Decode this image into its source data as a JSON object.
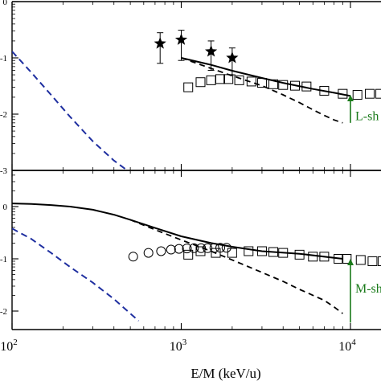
{
  "chart_data": [
    {
      "type": "scatter",
      "panel": "top",
      "x_scale": "log",
      "y_scale": "log",
      "xlim": [
        100,
        20000
      ],
      "ylim": [
        0.001,
        1
      ],
      "y_tick_labels": [
        "0",
        "-1",
        "-2",
        "-3"
      ],
      "series": [
        {
          "style": "stars-with-error-bars",
          "x": [
            750,
            1000,
            1500,
            2000
          ],
          "y": [
            0.18,
            0.21,
            0.13,
            0.1
          ],
          "yerr_low": [
            0.08,
            0.09,
            0.06,
            0.05
          ],
          "yerr_high": [
            0.28,
            0.31,
            0.2,
            0.15
          ]
        },
        {
          "style": "open-squares",
          "x": [
            1100,
            1300,
            1500,
            1700,
            1900,
            2200,
            2600,
            3000,
            3500,
            4000,
            4700,
            5500,
            7000,
            9000,
            11000,
            13000,
            15000,
            17000
          ],
          "y": [
            0.03,
            0.037,
            0.04,
            0.042,
            0.042,
            0.04,
            0.038,
            0.036,
            0.034,
            0.033,
            0.032,
            0.031,
            0.026,
            0.023,
            0.022,
            0.023,
            0.023,
            0.023
          ]
        },
        {
          "style": "solid-line",
          "x": [
            1000,
            1500,
            2000,
            3000,
            4000,
            6000,
            8000,
            10000
          ],
          "y": [
            0.1,
            0.075,
            0.059,
            0.044,
            0.036,
            0.028,
            0.024,
            0.021
          ]
        },
        {
          "style": "black-dashed-line",
          "x": [
            1000,
            1500,
            2000,
            3000,
            4000,
            5000,
            6000,
            7000,
            8000,
            9000
          ],
          "y": [
            0.1,
            0.065,
            0.048,
            0.032,
            0.022,
            0.016,
            0.012,
            0.0095,
            0.0079,
            0.007
          ]
        },
        {
          "style": "blue-dashed-line",
          "x": [
            100,
            130,
            170,
            220,
            300,
            400,
            530
          ],
          "y": [
            0.13,
            0.055,
            0.022,
            0.009,
            0.0033,
            0.0015,
            0.0008
          ]
        }
      ],
      "annotations": [
        {
          "text": "L-sh",
          "x": 9600,
          "y": 0.0095,
          "arrow_from_y": 0.007,
          "arrow_to_y": 0.022,
          "color": "#1a7a1a"
        }
      ]
    },
    {
      "type": "scatter",
      "panel": "bottom",
      "x_scale": "log",
      "y_scale": "log",
      "xlim": [
        100,
        20000
      ],
      "ylim": [
        0.006,
        1.6
      ],
      "y_tick_labels": [
        "0",
        "-1",
        "-2"
      ],
      "series": [
        {
          "style": "open-circles",
          "x": [
            520,
            640,
            760,
            870,
            970,
            1080,
            1190,
            1310,
            1430,
            1570,
            1700,
            1850
          ],
          "y": [
            0.11,
            0.13,
            0.14,
            0.15,
            0.155,
            0.158,
            0.16,
            0.16,
            0.16,
            0.162,
            0.163,
            0.163
          ]
        },
        {
          "style": "open-squares",
          "x": [
            1100,
            1300,
            1600,
            2000,
            2500,
            3000,
            3500,
            4000,
            5000,
            6000,
            7000,
            8500,
            9500,
            11500,
            13500,
            15500,
            17500
          ],
          "y": [
            0.12,
            0.14,
            0.13,
            0.13,
            0.14,
            0.14,
            0.135,
            0.13,
            0.12,
            0.11,
            0.11,
            0.1,
            0.1,
            0.095,
            0.09,
            0.09,
            0.09
          ]
        },
        {
          "style": "solid-line",
          "x": [
            100,
            130,
            170,
            220,
            300,
            400,
            500,
            700,
            1000,
            1500,
            2000,
            3000,
            5000,
            9000
          ],
          "y": [
            1.15,
            1.12,
            1.07,
            1.0,
            0.87,
            0.7,
            0.56,
            0.39,
            0.27,
            0.2,
            0.17,
            0.14,
            0.125,
            0.1
          ]
        },
        {
          "style": "black-dashed-line",
          "x": [
            500,
            700,
            1000,
            1500,
            2000,
            3000,
            4000,
            5000,
            6000,
            7000,
            8000,
            9000
          ],
          "y": [
            0.56,
            0.36,
            0.23,
            0.14,
            0.095,
            0.055,
            0.037,
            0.026,
            0.02,
            0.016,
            0.012,
            0.009
          ]
        },
        {
          "style": "blue-dashed-line",
          "x": [
            100,
            130,
            170,
            220,
            300,
            400,
            500,
            560
          ],
          "y": [
            0.38,
            0.24,
            0.13,
            0.07,
            0.035,
            0.017,
            0.009,
            0.0065
          ]
        }
      ],
      "annotations": [
        {
          "text": "M-sh",
          "x": 9600,
          "y": 0.028,
          "arrow_from_y": 0.006,
          "arrow_to_y": 0.1,
          "color": "#1a7a1a"
        }
      ]
    }
  ],
  "x_axis": {
    "label": "E/M (keV/u)",
    "tick_labels": [
      {
        "value": 100,
        "base": "10",
        "exp": "2"
      },
      {
        "value": 1000,
        "base": "10",
        "exp": "3"
      },
      {
        "value": 10000,
        "base": "10",
        "exp": "4"
      }
    ]
  },
  "colors": {
    "blue_dash": "#1f2fa0",
    "annotation": "#1a7a1a",
    "black": "#000000"
  }
}
